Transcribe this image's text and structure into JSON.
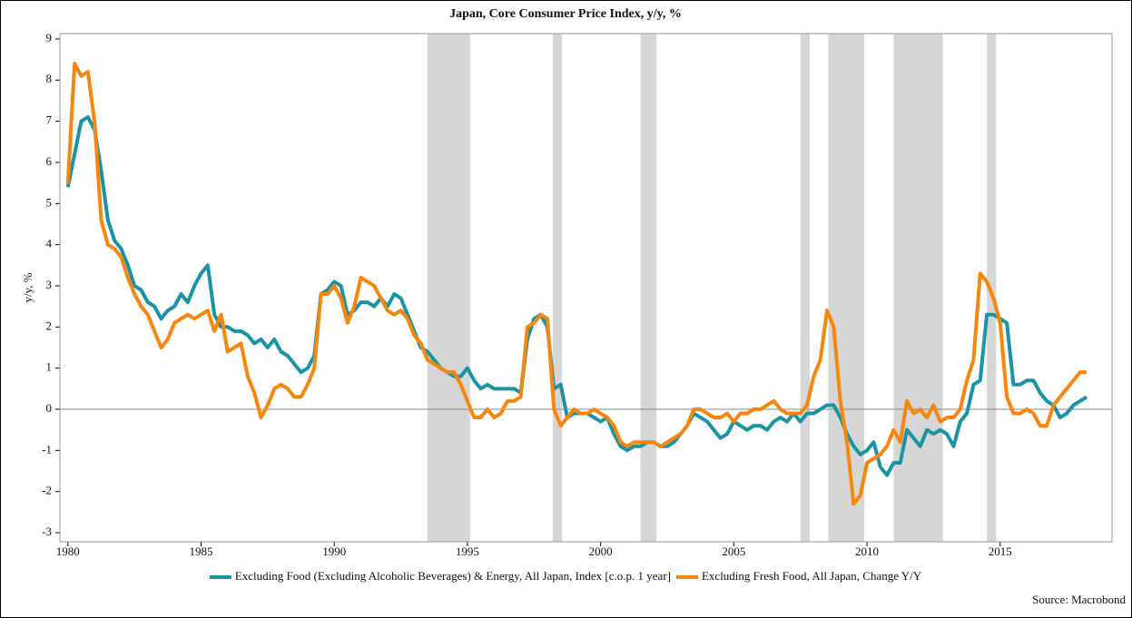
{
  "chart_data": {
    "type": "line",
    "title": "Japan, Core Consumer Price Index, y/y, %",
    "ylabel": "y/y, %",
    "source": "Source: Macrobond",
    "xlim": [
      1979.7,
      2019.2
    ],
    "ylim": [
      -3.22,
      9.13
    ],
    "xticks": [
      1980,
      1985,
      1990,
      1995,
      2000,
      2005,
      2010,
      2015
    ],
    "yticks": [
      -3,
      -2,
      -1,
      0,
      1,
      2,
      3,
      4,
      5,
      6,
      7,
      8,
      9
    ],
    "reference_line": 0,
    "shaded_periods": [
      [
        1993.5,
        1995.1
      ],
      [
        1998.2,
        1998.55
      ],
      [
        2001.5,
        2002.1
      ],
      [
        2007.5,
        2007.85
      ],
      [
        2008.55,
        2009.9
      ],
      [
        2011.0,
        2012.85
      ],
      [
        2014.5,
        2014.85
      ]
    ],
    "x": [
      1980,
      1980.25,
      1980.5,
      1980.75,
      1981,
      1981.25,
      1981.5,
      1981.75,
      1982,
      1982.25,
      1982.5,
      1982.75,
      1983,
      1983.25,
      1983.5,
      1983.75,
      1984,
      1984.25,
      1984.5,
      1984.75,
      1985,
      1985.25,
      1985.5,
      1985.75,
      1986,
      1986.25,
      1986.5,
      1986.75,
      1987,
      1987.25,
      1987.5,
      1987.75,
      1988,
      1988.25,
      1988.5,
      1988.75,
      1989,
      1989.25,
      1989.5,
      1989.75,
      1990,
      1990.25,
      1990.5,
      1990.75,
      1991,
      1991.25,
      1991.5,
      1991.75,
      1992,
      1992.25,
      1992.5,
      1992.75,
      1993,
      1993.25,
      1993.5,
      1993.75,
      1994,
      1994.25,
      1994.5,
      1994.75,
      1995,
      1995.25,
      1995.5,
      1995.75,
      1996,
      1996.25,
      1996.5,
      1996.75,
      1997,
      1997.25,
      1997.5,
      1997.75,
      1998,
      1998.25,
      1998.5,
      1998.75,
      1999,
      1999.25,
      1999.5,
      1999.75,
      2000,
      2000.25,
      2000.5,
      2000.75,
      2001,
      2001.25,
      2001.5,
      2001.75,
      2002,
      2002.25,
      2002.5,
      2002.75,
      2003,
      2003.25,
      2003.5,
      2003.75,
      2004,
      2004.25,
      2004.5,
      2004.75,
      2005,
      2005.25,
      2005.5,
      2005.75,
      2006,
      2006.25,
      2006.5,
      2006.75,
      2007,
      2007.25,
      2007.5,
      2007.75,
      2008,
      2008.25,
      2008.5,
      2008.75,
      2009,
      2009.25,
      2009.5,
      2009.75,
      2010,
      2010.25,
      2010.5,
      2010.75,
      2011,
      2011.25,
      2011.5,
      2011.75,
      2012,
      2012.25,
      2012.5,
      2012.75,
      2013,
      2013.25,
      2013.5,
      2013.75,
      2014,
      2014.25,
      2014.5,
      2014.75,
      2015,
      2015.25,
      2015.5,
      2015.75,
      2016,
      2016.25,
      2016.5,
      2016.75,
      2017,
      2017.25,
      2017.5,
      2017.75,
      2018,
      2018.25
    ],
    "series": [
      {
        "name": "Excluding Food (Excluding Alcoholic Beverages) & Energy, All Japan, Index [c.o.p. 1 year]",
        "color": "#1a94a5",
        "values": [
          5.4,
          6.2,
          7.0,
          7.1,
          6.8,
          5.8,
          4.6,
          4.1,
          3.9,
          3.5,
          3.0,
          2.9,
          2.6,
          2.5,
          2.2,
          2.4,
          2.5,
          2.8,
          2.6,
          3.0,
          3.3,
          3.5,
          2.3,
          2.0,
          2.0,
          1.9,
          1.9,
          1.8,
          1.6,
          1.7,
          1.5,
          1.7,
          1.4,
          1.3,
          1.1,
          0.9,
          1.0,
          1.3,
          2.8,
          2.9,
          3.1,
          3.0,
          2.3,
          2.4,
          2.6,
          2.6,
          2.5,
          2.7,
          2.5,
          2.8,
          2.7,
          2.3,
          1.9,
          1.5,
          1.4,
          1.2,
          1.0,
          0.9,
          0.8,
          0.8,
          1.0,
          0.7,
          0.5,
          0.6,
          0.5,
          0.5,
          0.5,
          0.5,
          0.4,
          1.7,
          2.2,
          2.3,
          2.0,
          0.5,
          0.6,
          -0.2,
          -0.1,
          -0.1,
          -0.1,
          -0.2,
          -0.3,
          -0.2,
          -0.6,
          -0.9,
          -1.0,
          -0.9,
          -0.9,
          -0.8,
          -0.8,
          -0.9,
          -0.9,
          -0.8,
          -0.6,
          -0.4,
          -0.1,
          -0.2,
          -0.3,
          -0.5,
          -0.7,
          -0.6,
          -0.3,
          -0.4,
          -0.5,
          -0.4,
          -0.4,
          -0.5,
          -0.3,
          -0.2,
          -0.3,
          -0.1,
          -0.3,
          -0.1,
          -0.1,
          0.0,
          0.1,
          0.1,
          -0.2,
          -0.6,
          -0.9,
          -1.1,
          -1.0,
          -0.8,
          -1.4,
          -1.6,
          -1.3,
          -1.3,
          -0.5,
          -0.7,
          -0.9,
          -0.5,
          -0.6,
          -0.5,
          -0.6,
          -0.9,
          -0.3,
          -0.1,
          0.6,
          0.7,
          2.3,
          2.3,
          2.2,
          2.1,
          0.6,
          0.6,
          0.7,
          0.7,
          0.4,
          0.2,
          0.1,
          -0.2,
          -0.1,
          0.1,
          0.2,
          0.3
        ]
      },
      {
        "name": "Excluding Fresh Food, All Japan, Change Y/Y",
        "color": "#f7860e",
        "values": [
          5.5,
          8.4,
          8.1,
          8.2,
          7.0,
          4.6,
          4.0,
          3.9,
          3.7,
          3.2,
          2.8,
          2.5,
          2.3,
          1.9,
          1.5,
          1.7,
          2.1,
          2.2,
          2.3,
          2.2,
          2.3,
          2.4,
          1.9,
          2.3,
          1.4,
          1.5,
          1.6,
          0.8,
          0.4,
          -0.2,
          0.1,
          0.5,
          0.6,
          0.5,
          0.3,
          0.3,
          0.6,
          1.0,
          2.8,
          2.8,
          3.0,
          2.7,
          2.1,
          2.5,
          3.2,
          3.1,
          3.0,
          2.7,
          2.4,
          2.3,
          2.4,
          2.2,
          1.8,
          1.6,
          1.2,
          1.1,
          1.0,
          0.9,
          0.9,
          0.6,
          0.2,
          -0.2,
          -0.2,
          0.0,
          -0.2,
          -0.1,
          0.2,
          0.2,
          0.3,
          2.0,
          2.1,
          2.3,
          2.2,
          0.0,
          -0.4,
          -0.2,
          0.0,
          -0.1,
          -0.1,
          0.0,
          -0.1,
          -0.2,
          -0.4,
          -0.8,
          -0.9,
          -0.8,
          -0.8,
          -0.8,
          -0.8,
          -0.9,
          -0.8,
          -0.7,
          -0.6,
          -0.4,
          0.0,
          0.0,
          -0.1,
          -0.2,
          -0.2,
          -0.1,
          -0.3,
          -0.1,
          -0.1,
          0.0,
          0.0,
          0.1,
          0.2,
          0.0,
          -0.1,
          -0.1,
          -0.1,
          0.1,
          0.8,
          1.2,
          2.4,
          2.0,
          0.2,
          -0.8,
          -2.3,
          -2.1,
          -1.3,
          -1.2,
          -1.1,
          -0.9,
          -0.5,
          -0.8,
          0.2,
          -0.1,
          0.0,
          -0.2,
          0.1,
          -0.3,
          -0.2,
          -0.2,
          0.0,
          0.7,
          1.2,
          3.3,
          3.1,
          2.7,
          2.1,
          0.3,
          -0.1,
          -0.1,
          0.0,
          -0.1,
          -0.4,
          -0.4,
          0.1,
          0.3,
          0.5,
          0.7,
          0.9,
          0.9
        ]
      }
    ]
  }
}
